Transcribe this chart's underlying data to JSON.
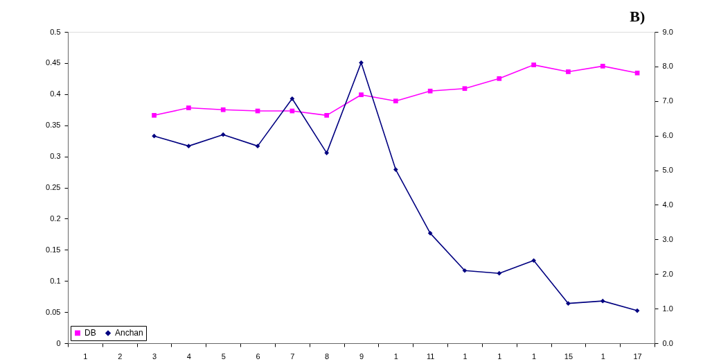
{
  "chart_data": {
    "type": "line",
    "title": "B)",
    "categories": [
      "1",
      "2",
      "3",
      "4",
      "5",
      "6",
      "7",
      "8",
      "9",
      "1",
      "11",
      "1",
      "1",
      "1",
      "15",
      "1",
      "17"
    ],
    "series": [
      {
        "name": "DB",
        "color": "#ff00ff",
        "marker": "square",
        "values": [
          null,
          null,
          0.366,
          0.378,
          0.375,
          0.373,
          0.373,
          0.366,
          0.399,
          0.389,
          0.405,
          0.409,
          0.425,
          0.447,
          0.436,
          0.445,
          0.434
        ]
      },
      {
        "name": "Anchan",
        "color": "#000080",
        "marker": "diamond",
        "axis": "y2",
        "values": [
          null,
          null,
          5.99,
          5.7,
          6.03,
          5.7,
          7.07,
          5.5,
          8.11,
          5.02,
          3.18,
          2.1,
          2.02,
          2.39,
          1.15,
          1.22,
          0.94
        ]
      }
    ],
    "ylim": [
      0,
      0.5
    ],
    "yticks": [
      0,
      0.05,
      0.1,
      0.15,
      0.2,
      0.25,
      0.3,
      0.35,
      0.4,
      0.45,
      0.5
    ],
    "y2lim": [
      0,
      9
    ],
    "y2ticks": [
      {
        "value": 0,
        "label": "0.0"
      },
      {
        "value": 1,
        "label": "1.0"
      },
      {
        "value": 2,
        "label": "2.0"
      },
      {
        "value": 3,
        "label": "3.0"
      },
      {
        "value": 4,
        "label": "4.0"
      },
      {
        "value": 5,
        "label": "5.0"
      },
      {
        "value": 6,
        "label": "6.0"
      },
      {
        "value": 7,
        "label": "7.0"
      },
      {
        "value": 8,
        "label": "8.0"
      },
      {
        "value": 9,
        "label": "9.0"
      }
    ],
    "legend": "bottom left",
    "grid": false
  }
}
